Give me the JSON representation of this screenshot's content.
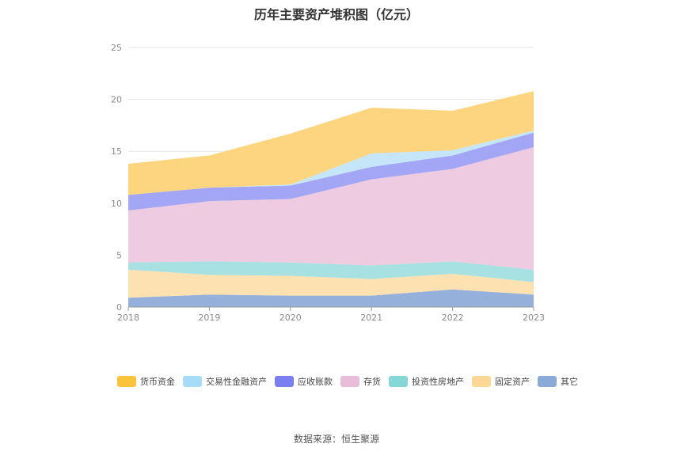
{
  "chart_data": {
    "type": "area",
    "stacked": true,
    "title": "历年主要资产堆积图（亿元）",
    "x": [
      "2018",
      "2019",
      "2020",
      "2021",
      "2022",
      "2023"
    ],
    "ylim": [
      0,
      25
    ],
    "yticks": [
      0,
      5,
      10,
      15,
      20,
      25
    ],
    "grid": true,
    "legend_position": "bottom",
    "series": [
      {
        "name": "其它",
        "color": "#94b0db",
        "values": [
          0.9,
          1.2,
          1.1,
          1.1,
          1.7,
          1.2
        ]
      },
      {
        "name": "固定资产",
        "color": "#fde1b0",
        "values": [
          2.7,
          1.9,
          1.9,
          1.6,
          1.5,
          1.2
        ]
      },
      {
        "name": "投资性房地产",
        "color": "#a8e1e1",
        "values": [
          0.7,
          1.3,
          1.3,
          1.3,
          1.2,
          1.2
        ]
      },
      {
        "name": "存货",
        "color": "#eecbe1",
        "values": [
          5.0,
          5.8,
          6.1,
          8.3,
          8.9,
          11.8
        ]
      },
      {
        "name": "应收账款",
        "color": "#a3a5f5",
        "values": [
          1.5,
          1.3,
          1.3,
          1.2,
          1.3,
          1.4
        ]
      },
      {
        "name": "交易性金融资产",
        "color": "#c4e6f8",
        "values": [
          0.0,
          0.0,
          0.1,
          1.3,
          0.5,
          0.2
        ]
      },
      {
        "name": "货币资金",
        "color": "#fdd57e",
        "values": [
          3.0,
          3.1,
          4.9,
          4.4,
          3.8,
          3.8
        ]
      }
    ]
  },
  "legend": {
    "items": [
      {
        "name": "货币资金",
        "color": "#fbc23c"
      },
      {
        "name": "交易性金融资产",
        "color": "#a6dcf9"
      },
      {
        "name": "应收账款",
        "color": "#7b7ef1"
      },
      {
        "name": "存货",
        "color": "#e9bcd9"
      },
      {
        "name": "投资性房地产",
        "color": "#85d6d6"
      },
      {
        "name": "固定资产",
        "color": "#fdd795"
      },
      {
        "name": "其它",
        "color": "#8aaad8"
      }
    ]
  },
  "footer": {
    "source": "数据来源：恒生聚源"
  }
}
